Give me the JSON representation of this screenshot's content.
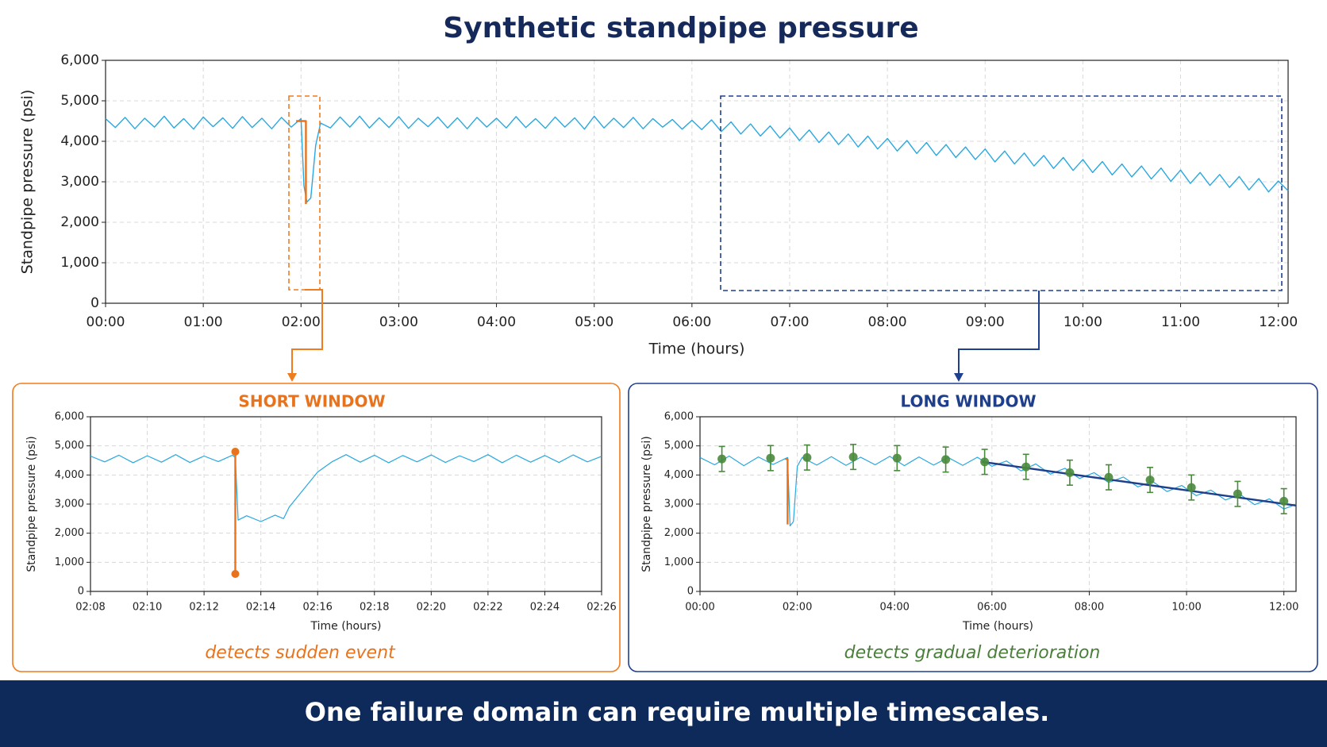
{
  "chart_data": [
    {
      "type": "line",
      "title": "Synthetic standpipe pressure",
      "xlabel": "Time (hours)",
      "ylabel": "Standpipe pressure (psi)",
      "grid": true,
      "xlim": [
        0,
        12.1
      ],
      "ylim": [
        0,
        6000
      ],
      "xticks": [
        {
          "value": 0,
          "label": "00:00"
        },
        {
          "value": 1,
          "label": "01:00"
        },
        {
          "value": 2,
          "label": "02:00"
        },
        {
          "value": 3,
          "label": "03:00"
        },
        {
          "value": 4,
          "label": "04:00"
        },
        {
          "value": 5,
          "label": "05:00"
        },
        {
          "value": 6,
          "label": "06:00"
        },
        {
          "value": 7,
          "label": "07:00"
        },
        {
          "value": 8,
          "label": "08:00"
        },
        {
          "value": 9,
          "label": "09:00"
        },
        {
          "value": 10,
          "label": "10:00"
        },
        {
          "value": 11,
          "label": "11:00"
        },
        {
          "value": 12,
          "label": "12:00"
        }
      ],
      "yticks": [
        0,
        {
          "value": 1000,
          "label": "1,000"
        },
        {
          "value": 2000,
          "label": "2,000"
        },
        {
          "value": 3000,
          "label": "3,000"
        },
        {
          "value": 4000,
          "label": "4,000"
        },
        {
          "value": 5000,
          "label": "5,000"
        },
        {
          "value": 6000,
          "label": "6,000"
        }
      ],
      "series": [
        {
          "color": "#29a8e0",
          "mode": "lines",
          "x": [
            0,
            0.1,
            0.2,
            0.3,
            0.4,
            0.5,
            0.6,
            0.7,
            0.8,
            0.9,
            1,
            1.1,
            1.2,
            1.3,
            1.4,
            1.5,
            1.6,
            1.7,
            1.8,
            1.9,
            2,
            2.03,
            2.06,
            2.1,
            2.15,
            2.2,
            2.3,
            2.4,
            2.5,
            2.6,
            2.7,
            2.8,
            2.9,
            3,
            3.1,
            3.2,
            3.3,
            3.4,
            3.5,
            3.6,
            3.7,
            3.8,
            3.9,
            4,
            4.1,
            4.2,
            4.3,
            4.4,
            4.5,
            4.6,
            4.7,
            4.8,
            4.9,
            5,
            5.1,
            5.2,
            5.3,
            5.4,
            5.5,
            5.6,
            5.7,
            5.8,
            5.9,
            6,
            6.1,
            6.2,
            6.3,
            6.4,
            6.5,
            6.6,
            6.7,
            6.8,
            6.9,
            7,
            7.1,
            7.2,
            7.3,
            7.4,
            7.5,
            7.6,
            7.7,
            7.8,
            7.9,
            8,
            8.1,
            8.2,
            8.3,
            8.4,
            8.5,
            8.6,
            8.7,
            8.8,
            8.9,
            9,
            9.1,
            9.2,
            9.3,
            9.4,
            9.5,
            9.6,
            9.7,
            9.8,
            9.9,
            10,
            10.1,
            10.2,
            10.3,
            10.4,
            10.5,
            10.6,
            10.7,
            10.8,
            10.9,
            11,
            11.1,
            11.2,
            11.3,
            11.4,
            11.5,
            11.6,
            11.7,
            11.8,
            11.9,
            12,
            12.1
          ],
          "values": [
            4560,
            4340,
            4590,
            4310,
            4570,
            4350,
            4620,
            4330,
            4560,
            4300,
            4600,
            4360,
            4580,
            4320,
            4610,
            4340,
            4570,
            4310,
            4590,
            4350,
            4560,
            2900,
            2500,
            2600,
            3900,
            4450,
            4330,
            4600,
            4350,
            4620,
            4330,
            4580,
            4340,
            4610,
            4320,
            4570,
            4360,
            4600,
            4330,
            4580,
            4310,
            4590,
            4350,
            4570,
            4330,
            4610,
            4340,
            4560,
            4320,
            4600,
            4350,
            4580,
            4300,
            4620,
            4330,
            4570,
            4340,
            4590,
            4310,
            4560,
            4350,
            4540,
            4300,
            4520,
            4290,
            4530,
            4240,
            4480,
            4180,
            4430,
            4130,
            4380,
            4080,
            4330,
            4020,
            4280,
            3970,
            4230,
            3920,
            4180,
            3860,
            4130,
            3810,
            4070,
            3760,
            4020,
            3700,
            3970,
            3650,
            3920,
            3600,
            3860,
            3550,
            3810,
            3490,
            3760,
            3440,
            3710,
            3390,
            3650,
            3330,
            3600,
            3280,
            3550,
            3230,
            3500,
            3170,
            3440,
            3120,
            3390,
            3070,
            3340,
            3010,
            3290,
            2960,
            3230,
            2910,
            3180,
            2860,
            3130,
            2800,
            3080,
            2750,
            3020,
            2780
          ]
        },
        {
          "color": "#e8731c",
          "mode": "lines",
          "x": [
            1.95,
            2.05,
            2.05
          ],
          "values": [
            4500,
            4500,
            2450
          ]
        }
      ]
    },
    {
      "type": "line",
      "title": "SHORT WINDOW",
      "caption": "detects sudden event",
      "xlabel": "Time (hours)",
      "ylabel": "Standpipe pressure (psi)",
      "grid": true,
      "xlim": [
        8,
        26
      ],
      "ylim": [
        0,
        6000
      ],
      "xticks": [
        {
          "value": 8,
          "label": "02:08"
        },
        {
          "value": 10,
          "label": "02:10"
        },
        {
          "value": 12,
          "label": "02:12"
        },
        {
          "value": 14,
          "label": "02:14"
        },
        {
          "value": 16,
          "label": "02:16"
        },
        {
          "value": 18,
          "label": "02:18"
        },
        {
          "value": 20,
          "label": "02:20"
        },
        {
          "value": 22,
          "label": "02:22"
        },
        {
          "value": 24,
          "label": "02:24"
        },
        {
          "value": 26,
          "label": "02:26"
        }
      ],
      "yticks": [
        0,
        {
          "value": 1000,
          "label": "1,000"
        },
        {
          "value": 2000,
          "label": "2,000"
        },
        {
          "value": 3000,
          "label": "3,000"
        },
        {
          "value": 4000,
          "label": "4,000"
        },
        {
          "value": 5000,
          "label": "5,000"
        },
        {
          "value": 6000,
          "label": "6,000"
        }
      ],
      "series": [
        {
          "color": "#29a8e0",
          "mode": "lines",
          "x": [
            8,
            8.5,
            9,
            9.5,
            10,
            10.5,
            11,
            11.5,
            12,
            12.5,
            13,
            13.1,
            13.2,
            13.5,
            14,
            14.5,
            14.8,
            15,
            15.5,
            16,
            16.5,
            17,
            17.5,
            18,
            18.5,
            19,
            19.5,
            20,
            20.5,
            21,
            21.5,
            22,
            22.5,
            23,
            23.5,
            24,
            24.5,
            25,
            25.5,
            26
          ],
          "values": [
            4650,
            4450,
            4680,
            4420,
            4660,
            4440,
            4700,
            4430,
            4650,
            4460,
            4680,
            4600,
            2450,
            2600,
            2400,
            2620,
            2500,
            2900,
            3500,
            4100,
            4450,
            4700,
            4440,
            4680,
            4420,
            4670,
            4450,
            4690,
            4430,
            4660,
            4460,
            4700,
            4420,
            4680,
            4440,
            4670,
            4430,
            4690,
            4450,
            4640
          ]
        },
        {
          "color": "#e8731c",
          "mode": "lines+markers",
          "x": [
            13.1,
            13.1
          ],
          "values": [
            4800,
            600
          ]
        }
      ]
    },
    {
      "type": "line",
      "title": "LONG WINDOW",
      "caption": "detects gradual deterioration",
      "xlabel": "Time (hours)",
      "ylabel": "Standpipe pressure (psi)",
      "grid": true,
      "xlim": [
        0,
        12.25
      ],
      "ylim": [
        0,
        6000
      ],
      "xticks": [
        {
          "value": 0,
          "label": "00:00"
        },
        {
          "value": 2,
          "label": "02:00"
        },
        {
          "value": 4,
          "label": "04:00"
        },
        {
          "value": 6,
          "label": "06:00"
        },
        {
          "value": 8,
          "label": "08:00"
        },
        {
          "value": 10,
          "label": "10:00"
        },
        {
          "value": 12,
          "label": "12:00"
        }
      ],
      "yticks": [
        0,
        {
          "value": 1000,
          "label": "1,000"
        },
        {
          "value": 2000,
          "label": "2,000"
        },
        {
          "value": 3000,
          "label": "3,000"
        },
        {
          "value": 4000,
          "label": "4,000"
        },
        {
          "value": 5000,
          "label": "5,000"
        },
        {
          "value": 6000,
          "label": "6,000"
        }
      ],
      "series": [
        {
          "color": "#29a8e0",
          "mode": "lines",
          "x": [
            0,
            0.3,
            0.6,
            0.9,
            1.2,
            1.5,
            1.8,
            1.85,
            1.92,
            2,
            2.1,
            2.4,
            2.7,
            3,
            3.3,
            3.6,
            3.9,
            4.2,
            4.5,
            4.8,
            5.1,
            5.4,
            5.7,
            6,
            6.3,
            6.6,
            6.9,
            7.2,
            7.5,
            7.8,
            8.1,
            8.4,
            8.7,
            9,
            9.3,
            9.6,
            9.9,
            10.2,
            10.5,
            10.8,
            11.1,
            11.4,
            11.7,
            12,
            12.25
          ],
          "values": [
            4600,
            4350,
            4650,
            4320,
            4620,
            4360,
            4600,
            2250,
            2400,
            4300,
            4600,
            4340,
            4630,
            4330,
            4610,
            4350,
            4640,
            4320,
            4620,
            4340,
            4600,
            4330,
            4610,
            4300,
            4480,
            4140,
            4380,
            4030,
            4230,
            3880,
            4080,
            3740,
            3930,
            3590,
            3780,
            3430,
            3640,
            3290,
            3480,
            3140,
            3330,
            2980,
            3180,
            2830,
            2990
          ]
        },
        {
          "color": "#e8731c",
          "mode": "lines",
          "x": [
            1.75,
            1.8,
            1.8
          ],
          "values": [
            4550,
            4550,
            2300
          ]
        },
        {
          "color": "#1d3f8c",
          "mode": "lines",
          "x": [
            5.8,
            12.25
          ],
          "values": [
            4450,
            2950
          ]
        },
        {
          "color": "#4a8a3c",
          "mode": "errorbars",
          "x": [
            0.45,
            1.45,
            2.2,
            3.15,
            4.05,
            5.05,
            5.85,
            6.7,
            7.6,
            8.4,
            9.25,
            10.1,
            11.05,
            12
          ],
          "values": [
            4550,
            4580,
            4600,
            4620,
            4580,
            4530,
            4450,
            4280,
            4080,
            3920,
            3830,
            3570,
            3350,
            3100
          ],
          "errors": [
            430,
            430,
            430,
            430,
            430,
            430,
            430,
            430,
            430,
            430,
            430,
            430,
            430,
            430
          ]
        }
      ]
    }
  ],
  "footer": "One failure domain can require multiple timescales."
}
